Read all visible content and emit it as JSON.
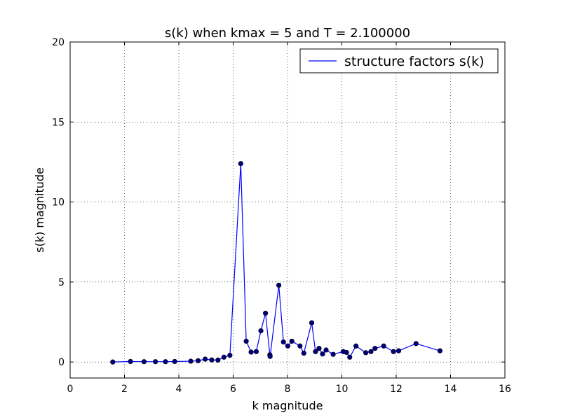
{
  "chart_data": {
    "type": "line",
    "title": "s(k) when kmax = 5 and T = 2.100000",
    "xlabel": "k magnitude",
    "ylabel": "s(k) magnitude",
    "xlim": [
      0,
      16
    ],
    "ylim": [
      -1,
      20
    ],
    "xticks": [
      "0",
      "2",
      "4",
      "6",
      "8",
      "10",
      "12",
      "14",
      "16"
    ],
    "yticks": [
      "0",
      "5",
      "10",
      "15",
      "20"
    ],
    "grid": true,
    "legend_position": "top-right",
    "series": [
      {
        "name": "structure factors s(k)",
        "color": "#0000ff",
        "marker": "circle",
        "x": [
          1.57,
          2.22,
          2.72,
          3.14,
          3.51,
          3.85,
          4.44,
          4.71,
          4.97,
          5.21,
          5.44,
          5.66,
          5.88,
          6.28,
          6.48,
          6.66,
          6.85,
          7.02,
          7.19,
          7.35,
          7.36,
          7.68,
          7.85,
          8.01,
          8.16,
          8.46,
          8.6,
          8.89,
          9.03,
          9.16,
          9.29,
          9.42,
          9.68,
          10.05,
          10.17,
          10.29,
          10.52,
          10.88,
          11.07,
          11.22,
          11.54,
          11.9,
          12.09,
          12.73,
          13.61
        ],
        "y": [
          0.0,
          0.03,
          0.02,
          0.02,
          0.02,
          0.03,
          0.05,
          0.08,
          0.18,
          0.13,
          0.12,
          0.3,
          0.42,
          12.4,
          1.3,
          0.62,
          0.65,
          1.95,
          3.05,
          0.45,
          0.35,
          4.8,
          1.25,
          1.0,
          1.3,
          1.0,
          0.55,
          2.45,
          0.65,
          0.85,
          0.5,
          0.75,
          0.48,
          0.65,
          0.6,
          0.3,
          1.0,
          0.58,
          0.65,
          0.85,
          1.0,
          0.65,
          0.7,
          1.15,
          0.7
        ]
      }
    ]
  }
}
